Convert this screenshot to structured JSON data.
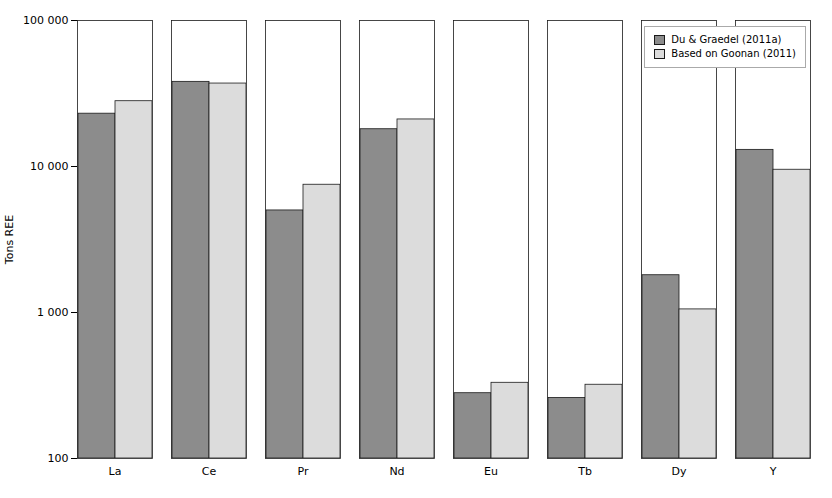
{
  "chart_data": {
    "type": "bar",
    "categories": [
      "La",
      "Ce",
      "Pr",
      "Nd",
      "Eu",
      "Tb",
      "Dy",
      "Y"
    ],
    "series": [
      {
        "name": "Du & Graedel (2011a)",
        "color": "#8c8c8c",
        "values": [
          23000,
          38000,
          5000,
          18000,
          280,
          260,
          1800,
          13000
        ]
      },
      {
        "name": "Based on Goonan (2011)",
        "color": "#dcdcdc",
        "values": [
          28000,
          37000,
          7500,
          21000,
          330,
          320,
          1050,
          9500
        ]
      }
    ],
    "ylabel": "Tons REE",
    "log": "y",
    "ylim": [
      100,
      100000
    ],
    "yticks": [
      100,
      {
        "value": 1000,
        "label": "1 000"
      },
      {
        "value": 10000,
        "label": "10 000"
      },
      {
        "value": 100000,
        "label": "100 000"
      }
    ],
    "grid": false,
    "legend": "upper right"
  }
}
